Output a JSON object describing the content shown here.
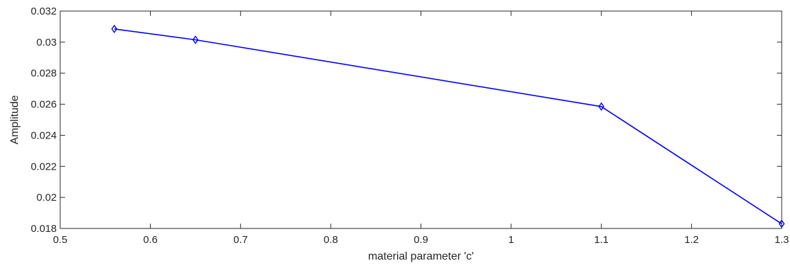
{
  "chart_data": {
    "type": "line",
    "title": "",
    "xlabel": "material parameter 'c'",
    "ylabel": "Amplitude",
    "xlim": [
      0.5,
      1.3
    ],
    "ylim": [
      0.018,
      0.032
    ],
    "xticks": [
      0.5,
      0.6,
      0.7,
      0.8,
      0.9,
      1,
      1.1,
      1.2,
      1.3
    ],
    "yticks": [
      0.018,
      0.02,
      0.022,
      0.024,
      0.026,
      0.028,
      0.03,
      0.032
    ],
    "xtick_labels": [
      "0.5",
      "0.6",
      "0.7",
      "0.8",
      "0.9",
      "1",
      "1.1",
      "1.2",
      "1.3"
    ],
    "ytick_labels": [
      "0.018",
      "0.02",
      "0.022",
      "0.024",
      "0.026",
      "0.028",
      "0.03",
      "0.032"
    ],
    "grid": false,
    "series": [
      {
        "color": "#0000ff",
        "marker": "diamond",
        "x": [
          0.56,
          0.65,
          1.1,
          1.3
        ],
        "y": [
          0.03085,
          0.03015,
          0.02585,
          0.0183
        ]
      }
    ]
  }
}
